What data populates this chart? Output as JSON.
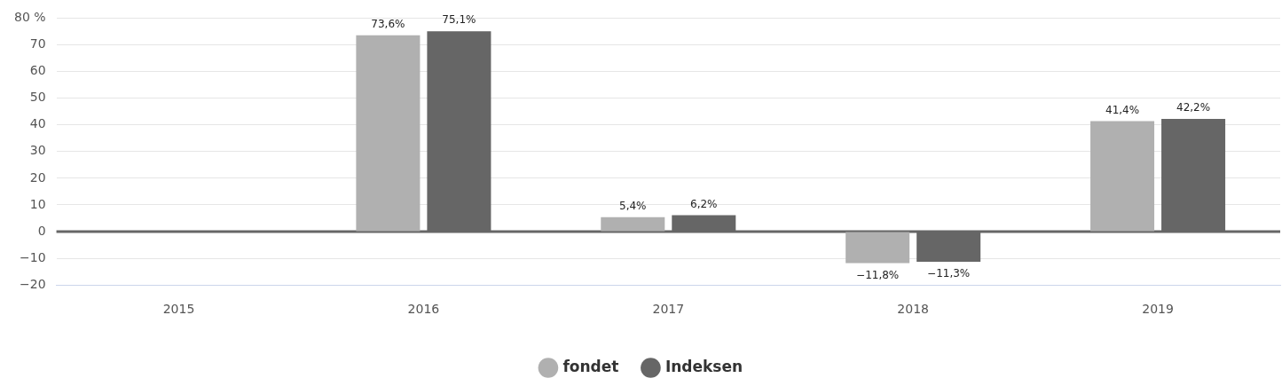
{
  "chart_data": {
    "type": "bar",
    "categories": [
      "2015",
      "2016",
      "2017",
      "2018",
      "2019"
    ],
    "series": [
      {
        "name": "fondet",
        "color": "#b0b0b0",
        "values": [
          null,
          73.6,
          5.4,
          -11.8,
          41.4
        ],
        "value_labels": [
          null,
          "73,6%",
          "5,4%",
          "−11,8%",
          "41,4%"
        ]
      },
      {
        "name": "Indeksen",
        "color": "#666666",
        "values": [
          null,
          75.1,
          6.2,
          -11.3,
          42.2
        ],
        "value_labels": [
          null,
          "75,1%",
          "6,2%",
          "−11,3%",
          "42,2%"
        ]
      }
    ],
    "ylim": [
      -20,
      80
    ],
    "yticks": [
      {
        "value": -20,
        "label": "−20"
      },
      {
        "value": -10,
        "label": "−10"
      },
      0,
      10,
      20,
      30,
      40,
      50,
      60,
      70,
      {
        "value": 80,
        "label": "80 %"
      }
    ],
    "ref_lines": [
      {
        "axis": "y",
        "value": 0,
        "color": "#666666"
      }
    ],
    "grid": "y",
    "legend": "bottom"
  }
}
